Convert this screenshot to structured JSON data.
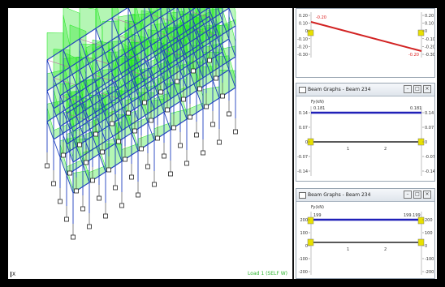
{
  "model_view": {
    "status_text": "Load 1 (SELF W)",
    "axis_label": "X"
  },
  "panel_top": {
    "left_label": "-0.20",
    "right_label": "-0.20",
    "y_ticks": [
      "0.20",
      "0.10",
      "0",
      "-0.10",
      "-0.20",
      "-0.30"
    ],
    "right_ticks": [
      "0.20",
      "0.10",
      "0",
      "-0.10",
      "-0.20",
      "-0.30"
    ]
  },
  "panel_mid": {
    "title": "Beam Graphs - Beam 234",
    "unit": "Fy(kN)",
    "left_value": "0.181",
    "right_value": "0.181",
    "y_ticks": [
      "0.14",
      "0.07",
      "0",
      "-0.07",
      "-0.14"
    ],
    "right_ticks": [
      "0.14",
      "0.07",
      "0",
      "-0.07",
      "-0.14"
    ],
    "x_ticks": [
      "1",
      "2"
    ]
  },
  "panel_bot": {
    "title": "Beam Graphs - Beam 234",
    "unit": "Fy(kN)",
    "left_value": "199",
    "right_value": "199.199",
    "y_ticks": [
      "200",
      "100",
      "0",
      "-100",
      "-200"
    ],
    "right_ticks": [
      "200",
      "100",
      "0",
      "-100",
      "-200"
    ],
    "x_ticks": [
      "1",
      "2"
    ]
  },
  "buttons": {
    "min": "–",
    "max": "□",
    "close": "×"
  },
  "colors": {
    "frame": "#1f3fbf",
    "loads": "#19e619",
    "support": "#222222",
    "beam_red": "#d22222",
    "beam_blue": "#2020b8"
  }
}
